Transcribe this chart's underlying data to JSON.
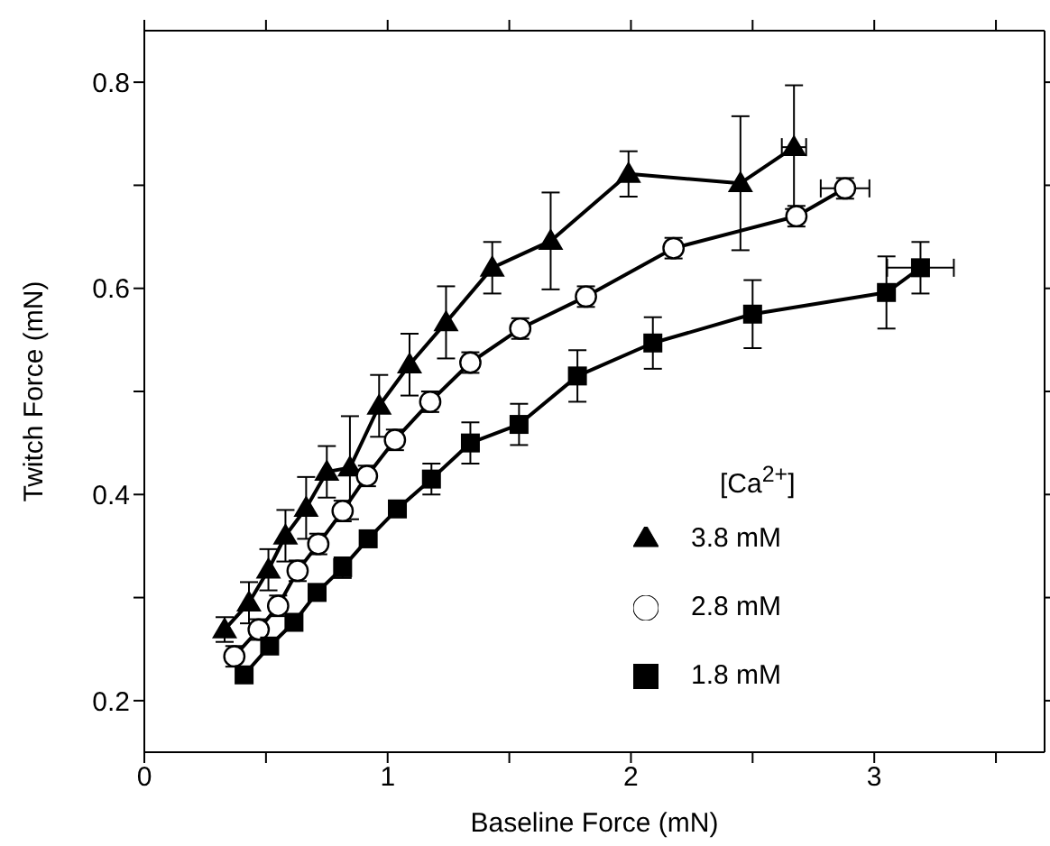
{
  "chart_data": {
    "type": "line",
    "xlabel": "Baseline Force (mN)",
    "ylabel": "Twitch Force (mN)",
    "legend_title": "[Ca$^{2+}$]",
    "legend": "bottom right",
    "line_style": "solid",
    "xlim": [
      0,
      3.7
    ],
    "xticks": [
      0,
      {
        "value": 0.5,
        "label": null
      },
      1,
      {
        "value": 1.5,
        "label": null
      },
      2,
      {
        "value": 2.5,
        "label": null
      },
      3,
      {
        "value": 3.5,
        "label": null
      }
    ],
    "ylim": [
      0.15,
      0.85
    ],
    "yticks": [
      0.2,
      {
        "value": 0.3,
        "label": null
      },
      0.4,
      {
        "value": 0.5,
        "label": null
      },
      0.6,
      {
        "value": 0.7,
        "label": null
      },
      0.8
    ],
    "series": [
      {
        "name": "3.8 mM",
        "color": "#000000",
        "marker": "triangle",
        "x": [
          0.33,
          0.43,
          0.51,
          0.58,
          0.665,
          0.75,
          0.845,
          0.965,
          1.09,
          1.24,
          1.43,
          1.67,
          1.99,
          2.45,
          2.67
        ],
        "values": [
          0.269,
          0.295,
          0.327,
          0.36,
          0.387,
          0.422,
          0.426,
          0.486,
          0.526,
          0.567,
          0.62,
          0.646,
          0.711,
          0.702,
          0.737
        ],
        "errors": [
          0.012,
          0.02,
          0.02,
          0.025,
          0.03,
          0.025,
          0.05,
          0.03,
          0.03,
          0.035,
          0.025,
          0.047,
          0.022,
          0.065,
          0.06
        ],
        "xerrors": [
          null,
          null,
          null,
          null,
          null,
          null,
          null,
          null,
          null,
          null,
          null,
          null,
          null,
          null,
          0.05
        ]
      },
      {
        "name": "2.8 mM",
        "color": "#000000",
        "marker": "circle",
        "x": [
          0.37,
          0.47,
          0.55,
          0.63,
          0.715,
          0.815,
          0.915,
          1.03,
          1.175,
          1.34,
          1.545,
          1.815,
          2.175,
          2.68,
          2.88
        ],
        "values": [
          0.243,
          0.269,
          0.292,
          0.326,
          0.352,
          0.384,
          0.418,
          0.453,
          0.49,
          0.528,
          0.561,
          0.592,
          0.639,
          0.67,
          0.697
        ],
        "errors": [
          0.01,
          0.01,
          0.01,
          0.01,
          0.01,
          0.01,
          0.01,
          0.01,
          0.01,
          0.01,
          0.01,
          0.01,
          0.01,
          0.01,
          0.01
        ],
        "xerrors": [
          null,
          null,
          null,
          null,
          null,
          null,
          null,
          null,
          null,
          null,
          null,
          null,
          null,
          null,
          0.1
        ]
      },
      {
        "name": "1.8 mM",
        "color": "#000000",
        "marker": "square",
        "x": [
          0.41,
          0.515,
          0.615,
          0.71,
          0.815,
          0.92,
          1.04,
          1.18,
          1.34,
          1.54,
          1.78,
          2.09,
          2.5,
          3.05,
          3.19
        ],
        "values": [
          0.225,
          0.253,
          0.276,
          0.305,
          0.329,
          0.357,
          0.386,
          0.415,
          0.45,
          0.468,
          0.515,
          0.547,
          0.575,
          0.596,
          0.62
        ],
        "errors": [
          null,
          null,
          null,
          null,
          0.01,
          null,
          null,
          0.015,
          0.02,
          0.02,
          0.025,
          0.025,
          0.033,
          0.035,
          0.025
        ],
        "xerrors": [
          null,
          null,
          null,
          null,
          null,
          null,
          null,
          null,
          null,
          null,
          null,
          null,
          null,
          null,
          0.137
        ]
      }
    ]
  }
}
